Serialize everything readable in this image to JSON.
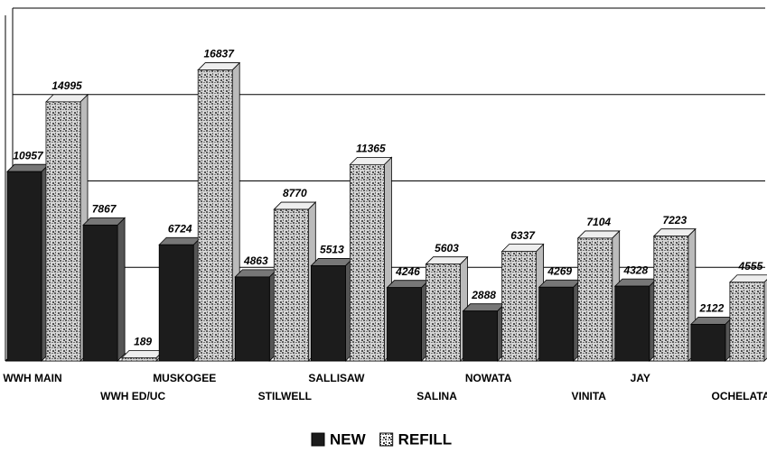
{
  "chart_data": {
    "type": "bar",
    "categories": [
      "WWH MAIN",
      "WWH ED/UC",
      "MUSKOGEE",
      "STILWELL",
      "SALLISAW",
      "SALINA",
      "NOWATA",
      "VINITA",
      "JAY",
      "OCHELATA"
    ],
    "series": [
      {
        "name": "NEW",
        "color": "#1c1c1c",
        "values": [
          10957,
          7867,
          6724,
          4863,
          5513,
          4246,
          2888,
          4269,
          4328,
          2122
        ]
      },
      {
        "name": "REFILL",
        "color": "#8a8a8a",
        "values": [
          14995,
          189,
          16837,
          8770,
          11365,
          5603,
          6337,
          7104,
          7223,
          4555
        ]
      }
    ],
    "ylim": [
      0,
      20000
    ],
    "yticks": [
      0,
      5000,
      10000,
      15000,
      20000
    ],
    "grid": true
  }
}
